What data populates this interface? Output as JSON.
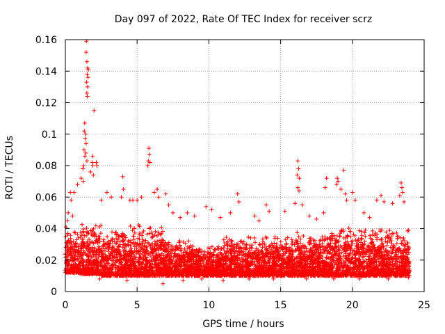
{
  "chart_data": {
    "type": "scatter",
    "title": "Day 097 of 2022, Rate Of TEC Index for receiver scrz",
    "xlabel": "GPS time / hours",
    "ylabel": "ROTI / TECUs",
    "xlim": [
      0,
      25
    ],
    "ylim": [
      0,
      0.16
    ],
    "xticks": [
      0,
      5,
      10,
      15,
      20,
      25
    ],
    "xtick_labels": [
      "0",
      "5",
      "10",
      "15",
      "20",
      "25"
    ],
    "yticks": [
      0,
      0.02,
      0.04,
      0.06,
      0.08,
      0.1,
      0.12,
      0.14,
      0.16
    ],
    "ytick_labels": [
      "0",
      "0.02",
      "0.04",
      "0.06",
      "0.08",
      "0.1",
      "0.12",
      "0.14",
      "0.16"
    ],
    "grid": true,
    "marker": "+",
    "color": "#ff0000",
    "series": [
      {
        "name": "ROTI",
        "points": [
          [
            1.47,
            0.159
          ],
          [
            1.45,
            0.152
          ],
          [
            1.5,
            0.146
          ],
          [
            1.55,
            0.142
          ],
          [
            1.6,
            0.141
          ],
          [
            1.52,
            0.138
          ],
          [
            1.58,
            0.136
          ],
          [
            1.48,
            0.133
          ],
          [
            1.55,
            0.13
          ],
          [
            1.5,
            0.126
          ],
          [
            1.53,
            0.124
          ],
          [
            2.0,
            0.115
          ],
          [
            1.35,
            0.107
          ],
          [
            1.32,
            0.102
          ],
          [
            1.4,
            0.1
          ],
          [
            1.38,
            0.097
          ],
          [
            1.45,
            0.094
          ],
          [
            1.3,
            0.09
          ],
          [
            1.42,
            0.088
          ],
          [
            1.36,
            0.086
          ],
          [
            1.5,
            0.083
          ],
          [
            1.9,
            0.086
          ],
          [
            1.88,
            0.082
          ],
          [
            1.28,
            0.08
          ],
          [
            1.22,
            0.078
          ],
          [
            1.9,
            0.08
          ],
          [
            2.15,
            0.082
          ],
          [
            2.2,
            0.08
          ],
          [
            1.75,
            0.076
          ],
          [
            1.95,
            0.074
          ],
          [
            5.82,
            0.091
          ],
          [
            5.85,
            0.087
          ],
          [
            5.78,
            0.083
          ],
          [
            5.9,
            0.082
          ],
          [
            5.75,
            0.08
          ],
          [
            16.2,
            0.083
          ],
          [
            16.25,
            0.078
          ],
          [
            16.15,
            0.074
          ],
          [
            16.3,
            0.072
          ],
          [
            16.2,
            0.066
          ],
          [
            16.28,
            0.064
          ],
          [
            19.4,
            0.077
          ],
          [
            18.95,
            0.072
          ],
          [
            19.0,
            0.07
          ],
          [
            18.9,
            0.068
          ],
          [
            18.2,
            0.072
          ],
          [
            19.2,
            0.065
          ],
          [
            18.1,
            0.066
          ],
          [
            23.4,
            0.069
          ],
          [
            23.45,
            0.066
          ],
          [
            23.5,
            0.063
          ],
          [
            1.1,
            0.072
          ],
          [
            1.25,
            0.07
          ],
          [
            0.85,
            0.068
          ],
          [
            0.6,
            0.063
          ],
          [
            0.35,
            0.063
          ],
          [
            0.4,
            0.058
          ],
          [
            4.0,
            0.073
          ],
          [
            4.05,
            0.065
          ],
          [
            3.9,
            0.06
          ],
          [
            2.9,
            0.063
          ],
          [
            3.2,
            0.06
          ],
          [
            2.5,
            0.058
          ],
          [
            6.2,
            0.063
          ],
          [
            6.4,
            0.065
          ],
          [
            6.5,
            0.06
          ],
          [
            7.0,
            0.062
          ],
          [
            7.2,
            0.055
          ],
          [
            4.5,
            0.058
          ],
          [
            4.7,
            0.058
          ],
          [
            5.0,
            0.058
          ],
          [
            5.3,
            0.06
          ],
          [
            12.0,
            0.062
          ],
          [
            12.1,
            0.057
          ],
          [
            14.0,
            0.055
          ],
          [
            14.2,
            0.051
          ],
          [
            15.3,
            0.051
          ],
          [
            16.5,
            0.055
          ],
          [
            16.0,
            0.056
          ],
          [
            19.5,
            0.062
          ],
          [
            19.6,
            0.058
          ],
          [
            20.0,
            0.063
          ],
          [
            20.2,
            0.058
          ],
          [
            21.7,
            0.058
          ],
          [
            22.0,
            0.061
          ],
          [
            22.2,
            0.057
          ],
          [
            22.8,
            0.056
          ],
          [
            23.3,
            0.061
          ],
          [
            23.6,
            0.057
          ],
          [
            9.8,
            0.054
          ],
          [
            10.2,
            0.052
          ],
          [
            11.5,
            0.05
          ],
          [
            8.5,
            0.05
          ],
          [
            8.0,
            0.047
          ],
          [
            7.5,
            0.05
          ],
          [
            9.0,
            0.048
          ],
          [
            10.8,
            0.047
          ],
          [
            13.2,
            0.048
          ],
          [
            13.5,
            0.045
          ],
          [
            17.0,
            0.048
          ],
          [
            17.5,
            0.046
          ],
          [
            18.0,
            0.05
          ],
          [
            20.8,
            0.05
          ],
          [
            21.2,
            0.047
          ],
          [
            0.2,
            0.05
          ],
          [
            0.15,
            0.045
          ],
          [
            0.5,
            0.048
          ],
          [
            0.05,
            0.041
          ],
          [
            6.8,
            0.005
          ],
          [
            4.3,
            0.007
          ],
          [
            2.4,
            0.008
          ],
          [
            8.2,
            0.007
          ],
          [
            9.5,
            0.008
          ],
          [
            11.0,
            0.007
          ],
          [
            12.8,
            0.008
          ],
          [
            14.5,
            0.008
          ],
          [
            16.8,
            0.008
          ],
          [
            18.7,
            0.008
          ],
          [
            20.5,
            0.008
          ],
          [
            22.5,
            0.008
          ],
          [
            23.9,
            0.009
          ]
        ]
      }
    ],
    "cloud_segments": [
      {
        "x": [
          0.0,
          1.0
        ],
        "low": 0.012,
        "high": 0.04
      },
      {
        "x": [
          1.0,
          2.5
        ],
        "low": 0.011,
        "high": 0.046
      },
      {
        "x": [
          2.5,
          4.5
        ],
        "low": 0.01,
        "high": 0.04
      },
      {
        "x": [
          4.5,
          7.0
        ],
        "low": 0.01,
        "high": 0.044
      },
      {
        "x": [
          7.0,
          9.0
        ],
        "low": 0.01,
        "high": 0.033
      },
      {
        "x": [
          9.0,
          11.0
        ],
        "low": 0.01,
        "high": 0.03
      },
      {
        "x": [
          11.0,
          13.0
        ],
        "low": 0.01,
        "high": 0.036
      },
      {
        "x": [
          13.0,
          16.0
        ],
        "low": 0.01,
        "high": 0.036
      },
      {
        "x": [
          16.0,
          18.0
        ],
        "low": 0.01,
        "high": 0.038
      },
      {
        "x": [
          18.0,
          20.0
        ],
        "low": 0.01,
        "high": 0.042
      },
      {
        "x": [
          20.0,
          22.0
        ],
        "low": 0.01,
        "high": 0.04
      },
      {
        "x": [
          22.0,
          24.0
        ],
        "low": 0.01,
        "high": 0.04
      }
    ]
  }
}
